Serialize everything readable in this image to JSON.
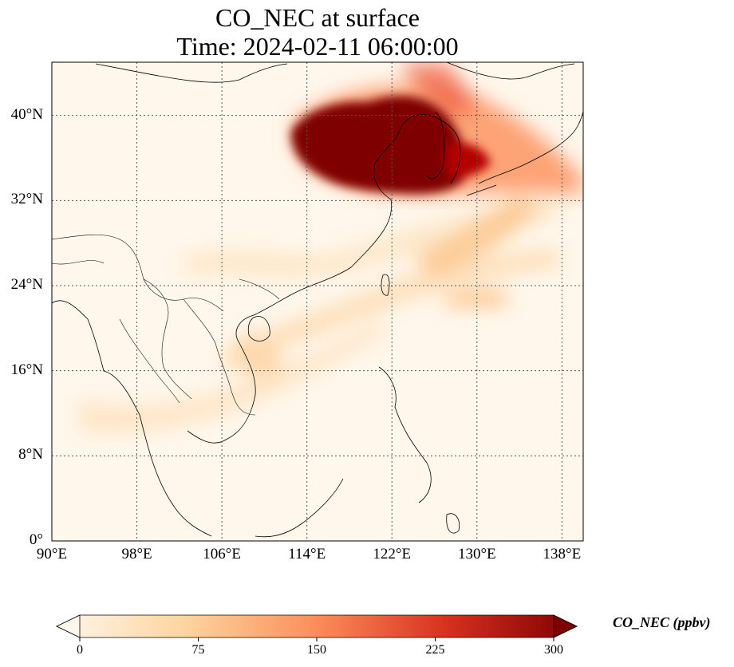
{
  "title": {
    "line1": "CO_NEC at surface",
    "line2": "Time: 2024-02-11 06:00:00"
  },
  "map": {
    "extent": {
      "lon_min": 90,
      "lon_max": 140,
      "lat_min": 0,
      "lat_max": 45
    },
    "lon_ticks": [
      {
        "value": 90,
        "label": "90°E"
      },
      {
        "value": 98,
        "label": "98°E"
      },
      {
        "value": 106,
        "label": "106°E"
      },
      {
        "value": 114,
        "label": "114°E"
      },
      {
        "value": 122,
        "label": "122°E"
      },
      {
        "value": 130,
        "label": "130°E"
      },
      {
        "value": 138,
        "label": "138°E"
      }
    ],
    "lat_ticks": [
      {
        "value": 0,
        "label": "0°"
      },
      {
        "value": 8,
        "label": "8°N"
      },
      {
        "value": 16,
        "label": "16°N"
      },
      {
        "value": 24,
        "label": "24°N"
      },
      {
        "value": 32,
        "label": "32°N"
      },
      {
        "value": 40,
        "label": "40°N"
      }
    ],
    "gridlines": true,
    "colormap": "OrRd",
    "colors": [
      "#fff7ec",
      "#fdd49e",
      "#fc8d59",
      "#d7301f",
      "#7f0000"
    ]
  },
  "colorbar": {
    "label": "CO_NEC (ppbv)",
    "min": 0,
    "max": 300,
    "extend": "both",
    "ticks": [
      {
        "value": 0,
        "label": "0"
      },
      {
        "value": 75,
        "label": "75"
      },
      {
        "value": 150,
        "label": "150"
      },
      {
        "value": 225,
        "label": "225"
      },
      {
        "value": 300,
        "label": "300"
      }
    ]
  }
}
